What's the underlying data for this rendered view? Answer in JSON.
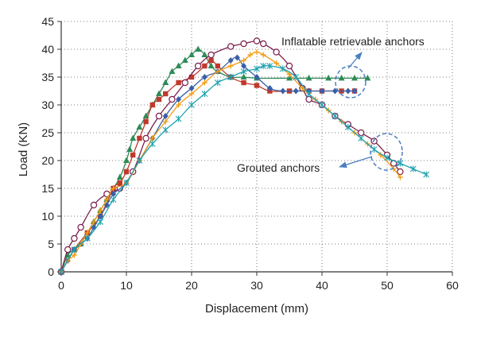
{
  "chart_data": {
    "type": "line",
    "xlabel": "Displacement (mm)",
    "ylabel": "Load (KN)",
    "xlim": [
      0,
      60
    ],
    "ylim": [
      0,
      45
    ],
    "x_ticks": [
      "0",
      "10",
      "20",
      "30",
      "40",
      "50",
      "60"
    ],
    "y_ticks": [
      "0",
      "5",
      "10",
      "15",
      "20",
      "25",
      "30",
      "35",
      "40",
      "45"
    ],
    "grid": "dotted",
    "legend": "none",
    "annotations": [
      {
        "text": "Inflatable retrievable anchors"
      },
      {
        "text": "Grouted anchors"
      }
    ],
    "series": [
      {
        "color": "#2e8b57",
        "marker": "triangle",
        "points": [
          [
            0,
            0
          ],
          [
            1,
            3
          ],
          [
            2,
            4
          ],
          [
            3,
            5
          ],
          [
            4,
            7
          ],
          [
            5,
            9
          ],
          [
            6,
            11
          ],
          [
            7,
            13
          ],
          [
            8,
            15
          ],
          [
            9,
            17
          ],
          [
            10,
            20
          ],
          [
            10.5,
            22
          ],
          [
            11,
            24
          ],
          [
            12,
            26
          ],
          [
            13,
            28
          ],
          [
            14,
            30
          ],
          [
            15,
            32
          ],
          [
            16,
            34
          ],
          [
            17,
            36
          ],
          [
            18,
            37
          ],
          [
            19,
            38
          ],
          [
            20,
            39
          ],
          [
            21,
            40
          ],
          [
            22,
            39
          ],
          [
            23,
            37
          ],
          [
            24,
            36
          ],
          [
            26,
            35
          ],
          [
            28,
            35
          ],
          [
            30,
            34.8
          ],
          [
            35,
            34.8
          ],
          [
            38,
            34.8
          ],
          [
            41,
            34.8
          ],
          [
            43,
            34.8
          ],
          [
            45,
            34.8
          ],
          [
            47,
            34.8
          ]
        ]
      },
      {
        "color": "#c0392b",
        "marker": "square",
        "points": [
          [
            0,
            0
          ],
          [
            2,
            4
          ],
          [
            4,
            7
          ],
          [
            6,
            10
          ],
          [
            8,
            15
          ],
          [
            9,
            16
          ],
          [
            10,
            18
          ],
          [
            11,
            21
          ],
          [
            12,
            24
          ],
          [
            13,
            27
          ],
          [
            14,
            30
          ],
          [
            15,
            31
          ],
          [
            16,
            32
          ],
          [
            18,
            34
          ],
          [
            20,
            35
          ],
          [
            22,
            37
          ],
          [
            23,
            38
          ],
          [
            24,
            37
          ],
          [
            26,
            35
          ],
          [
            28,
            34
          ],
          [
            30,
            33.5
          ],
          [
            32,
            32.5
          ],
          [
            35,
            32.5
          ],
          [
            38,
            32.5
          ],
          [
            40,
            32.5
          ],
          [
            43,
            32.5
          ],
          [
            45,
            32.5
          ]
        ]
      },
      {
        "color": "#7a1f4d",
        "marker": "circle",
        "points": [
          [
            0,
            0
          ],
          [
            1,
            4
          ],
          [
            2,
            6
          ],
          [
            3,
            8
          ],
          [
            5,
            12
          ],
          [
            7,
            14
          ],
          [
            9,
            15
          ],
          [
            11,
            18
          ],
          [
            13,
            24
          ],
          [
            15,
            28
          ],
          [
            17,
            31
          ],
          [
            19,
            34
          ],
          [
            21,
            37
          ],
          [
            23,
            39
          ],
          [
            26,
            40.5
          ],
          [
            28,
            41
          ],
          [
            30,
            41.5
          ],
          [
            31,
            41
          ],
          [
            33,
            39.5
          ],
          [
            35,
            37
          ],
          [
            37,
            33
          ],
          [
            38,
            31
          ],
          [
            40,
            30
          ],
          [
            42,
            28
          ],
          [
            44,
            26.5
          ],
          [
            46,
            25
          ],
          [
            48,
            23.5
          ],
          [
            50,
            21
          ],
          [
            51,
            19.5
          ],
          [
            52,
            18
          ]
        ]
      },
      {
        "color": "#3a5fa8",
        "marker": "diamond",
        "points": [
          [
            0,
            0
          ],
          [
            1,
            2
          ],
          [
            2,
            4
          ],
          [
            3,
            5
          ],
          [
            4,
            6
          ],
          [
            5,
            8
          ],
          [
            6,
            10
          ],
          [
            7,
            12
          ],
          [
            8,
            14
          ],
          [
            10,
            16
          ],
          [
            12,
            20
          ],
          [
            14,
            24
          ],
          [
            16,
            28
          ],
          [
            18,
            31
          ],
          [
            20,
            33
          ],
          [
            22,
            35
          ],
          [
            24,
            36
          ],
          [
            26,
            38
          ],
          [
            27,
            38.5
          ],
          [
            28,
            37
          ],
          [
            30,
            35
          ],
          [
            32,
            33
          ],
          [
            34,
            32.5
          ],
          [
            36,
            32.5
          ],
          [
            38,
            32.5
          ],
          [
            40,
            32.5
          ],
          [
            42,
            32.5
          ],
          [
            44,
            32.5
          ],
          [
            45,
            32.5
          ]
        ]
      },
      {
        "color": "#f39c12",
        "marker": "plus",
        "points": [
          [
            0,
            0
          ],
          [
            1,
            2
          ],
          [
            2,
            3
          ],
          [
            3,
            5
          ],
          [
            4,
            7
          ],
          [
            5,
            9
          ],
          [
            6,
            11
          ],
          [
            7,
            13
          ],
          [
            8,
            15
          ],
          [
            10,
            16
          ],
          [
            12,
            20
          ],
          [
            14,
            24
          ],
          [
            16,
            27
          ],
          [
            18,
            30
          ],
          [
            20,
            32
          ],
          [
            22,
            34
          ],
          [
            24,
            36
          ],
          [
            26,
            37
          ],
          [
            28,
            38
          ],
          [
            29,
            39
          ],
          [
            30,
            39.5
          ],
          [
            31,
            39
          ],
          [
            33,
            37.5
          ],
          [
            35,
            35.5
          ],
          [
            37,
            33
          ],
          [
            39,
            31
          ],
          [
            41,
            29
          ],
          [
            43,
            27
          ],
          [
            45,
            25
          ],
          [
            47,
            23
          ],
          [
            49,
            21
          ],
          [
            51,
            18.5
          ],
          [
            52,
            17
          ]
        ]
      },
      {
        "color": "#1fa2b0",
        "marker": "star",
        "points": [
          [
            0,
            0
          ],
          [
            2,
            4
          ],
          [
            4,
            6
          ],
          [
            6,
            9
          ],
          [
            8,
            13
          ],
          [
            10,
            16
          ],
          [
            12,
            20
          ],
          [
            14,
            23
          ],
          [
            16,
            25.5
          ],
          [
            18,
            27.5
          ],
          [
            20,
            30
          ],
          [
            22,
            32
          ],
          [
            24,
            34
          ],
          [
            26,
            35
          ],
          [
            28,
            36
          ],
          [
            30,
            36.5
          ],
          [
            31,
            37
          ],
          [
            32,
            37
          ],
          [
            34,
            36.5
          ],
          [
            36,
            35
          ],
          [
            38,
            32
          ],
          [
            40,
            30
          ],
          [
            42,
            28
          ],
          [
            44,
            26
          ],
          [
            46,
            24
          ],
          [
            48,
            22
          ],
          [
            50,
            20.5
          ],
          [
            52,
            19.5
          ],
          [
            54,
            18.5
          ],
          [
            56,
            17.5
          ]
        ]
      }
    ]
  }
}
